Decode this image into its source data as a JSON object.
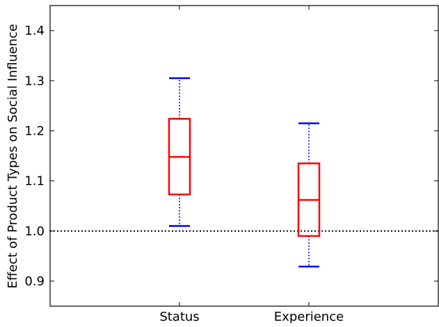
{
  "chart_data": {
    "type": "box",
    "title": "",
    "xlabel": "",
    "ylabel": "Effect of Product Types on Social Influence",
    "categories": [
      "Status",
      "Experience"
    ],
    "boxes": [
      {
        "name": "Status",
        "whisker_low": 1.01,
        "q1": 1.073,
        "median": 1.148,
        "q3": 1.224,
        "whisker_high": 1.305
      },
      {
        "name": "Experience",
        "whisker_low": 0.929,
        "q1": 0.99,
        "median": 1.062,
        "q3": 1.135,
        "whisker_high": 1.215
      }
    ],
    "ylim": [
      0.85,
      1.45
    ],
    "yticks": [
      "0.9",
      "1.0",
      "1.1",
      "1.2",
      "1.3",
      "1.4"
    ],
    "reference_line": {
      "y": 1.0,
      "style": "dotted"
    },
    "grid": false,
    "colors": {
      "box": "#ff0000",
      "whisker": "#0000ff",
      "reference": "#000000"
    }
  }
}
